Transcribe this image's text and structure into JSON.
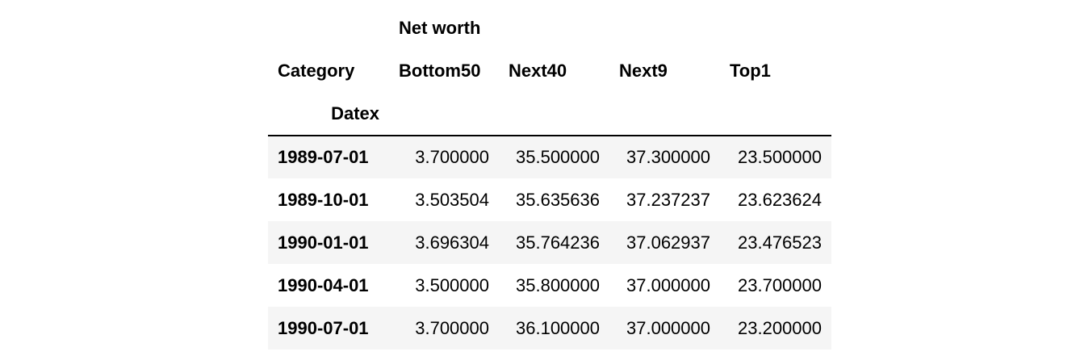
{
  "table": {
    "column_group_label": "Net worth",
    "columns_name": "Category",
    "index_name": "Datex",
    "columns": [
      "Bottom50",
      "Next40",
      "Next9",
      "Top1"
    ],
    "rows": [
      {
        "index": "1989-07-01",
        "values": [
          "3.700000",
          "35.500000",
          "37.300000",
          "23.500000"
        ]
      },
      {
        "index": "1989-10-01",
        "values": [
          "3.503504",
          "35.635636",
          "37.237237",
          "23.623624"
        ]
      },
      {
        "index": "1990-01-01",
        "values": [
          "3.696304",
          "35.764236",
          "37.062937",
          "23.476523"
        ]
      },
      {
        "index": "1990-04-01",
        "values": [
          "3.500000",
          "35.800000",
          "37.000000",
          "23.700000"
        ]
      },
      {
        "index": "1990-07-01",
        "values": [
          "3.700000",
          "36.100000",
          "37.000000",
          "23.200000"
        ]
      }
    ]
  }
}
